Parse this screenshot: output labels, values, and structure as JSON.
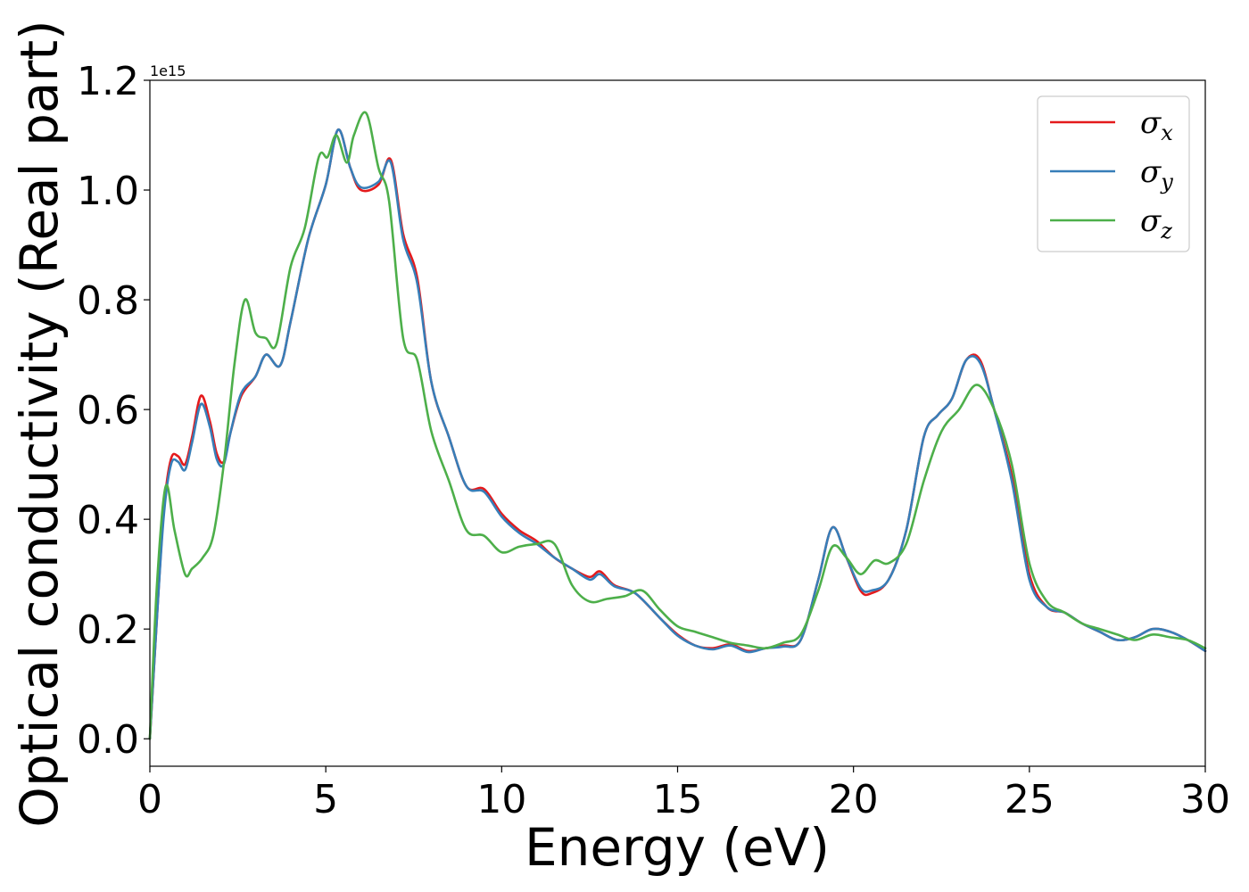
{
  "chart_data": {
    "type": "line",
    "title": "",
    "xlabel": "Energy (eV)",
    "ylabel": "Optical conductivity (Real part)",
    "y_offset_label": "1e15",
    "xlim": [
      0,
      30
    ],
    "ylim": [
      -0.05,
      1.2
    ],
    "xticks": [
      0,
      5,
      10,
      15,
      20,
      25,
      30
    ],
    "xtick_labels": [
      "0",
      "5",
      "10",
      "15",
      "20",
      "25",
      "30"
    ],
    "yticks": [
      0.0,
      0.2,
      0.4,
      0.6,
      0.8,
      1.0,
      1.2
    ],
    "ytick_labels": [
      "0.0",
      "0.2",
      "0.4",
      "0.6",
      "0.8",
      "1.0",
      "1.2"
    ],
    "grid": false,
    "legend_position": "top-right",
    "series": [
      {
        "name": "σ",
        "subscript": "x",
        "color": "#e41a1c",
        "x": [
          0,
          0.2,
          0.4,
          0.6,
          0.8,
          1.0,
          1.2,
          1.45,
          1.7,
          1.9,
          2.1,
          2.3,
          2.6,
          3.0,
          3.3,
          3.7,
          4.0,
          4.5,
          5.0,
          5.35,
          5.7,
          6.0,
          6.5,
          6.85,
          7.2,
          7.6,
          8.0,
          8.5,
          9.0,
          9.5,
          10.0,
          10.5,
          11.0,
          11.5,
          12.0,
          12.5,
          12.8,
          13.2,
          13.8,
          14.5,
          15.0,
          15.5,
          16.0,
          16.5,
          17.0,
          17.5,
          18.0,
          18.5,
          19.0,
          19.4,
          19.8,
          20.2,
          20.5,
          21.0,
          21.5,
          22.0,
          22.4,
          22.8,
          23.2,
          23.6,
          24.0,
          24.5,
          25.0,
          25.5,
          26.0,
          26.5,
          27.0,
          27.5,
          28.0,
          28.5,
          29.0,
          29.5,
          30.0
        ],
        "y": [
          0.0,
          0.22,
          0.42,
          0.51,
          0.515,
          0.5,
          0.55,
          0.625,
          0.58,
          0.52,
          0.505,
          0.56,
          0.625,
          0.66,
          0.7,
          0.68,
          0.76,
          0.91,
          1.01,
          1.11,
          1.04,
          1.0,
          1.01,
          1.055,
          0.92,
          0.84,
          0.65,
          0.55,
          0.46,
          0.455,
          0.41,
          0.38,
          0.36,
          0.33,
          0.31,
          0.295,
          0.305,
          0.28,
          0.265,
          0.22,
          0.19,
          0.17,
          0.165,
          0.172,
          0.16,
          0.165,
          0.17,
          0.18,
          0.29,
          0.385,
          0.33,
          0.27,
          0.265,
          0.29,
          0.38,
          0.55,
          0.59,
          0.62,
          0.69,
          0.69,
          0.6,
          0.48,
          0.3,
          0.24,
          0.23,
          0.21,
          0.195,
          0.18,
          0.185,
          0.2,
          0.195,
          0.18,
          0.16
        ]
      },
      {
        "name": "σ",
        "subscript": "y",
        "color": "#377eb8",
        "x": [
          0,
          0.2,
          0.4,
          0.6,
          0.8,
          1.0,
          1.2,
          1.45,
          1.7,
          1.9,
          2.1,
          2.3,
          2.6,
          3.0,
          3.3,
          3.7,
          4.0,
          4.5,
          5.0,
          5.35,
          5.7,
          6.0,
          6.5,
          6.85,
          7.2,
          7.6,
          8.0,
          8.5,
          9.0,
          9.5,
          10.0,
          10.5,
          11.0,
          11.5,
          12.0,
          12.5,
          12.8,
          13.2,
          13.8,
          14.5,
          15.0,
          15.5,
          16.0,
          16.5,
          17.0,
          17.5,
          18.0,
          18.5,
          19.0,
          19.4,
          19.8,
          20.2,
          20.5,
          21.0,
          21.5,
          22.0,
          22.4,
          22.8,
          23.2,
          23.6,
          24.0,
          24.5,
          25.0,
          25.5,
          26.0,
          26.5,
          27.0,
          27.5,
          28.0,
          28.5,
          29.0,
          29.5,
          30.0
        ],
        "y": [
          0.0,
          0.22,
          0.41,
          0.5,
          0.505,
          0.49,
          0.54,
          0.61,
          0.57,
          0.51,
          0.5,
          0.56,
          0.63,
          0.66,
          0.7,
          0.68,
          0.76,
          0.91,
          1.01,
          1.11,
          1.04,
          1.005,
          1.015,
          1.05,
          0.91,
          0.83,
          0.65,
          0.55,
          0.46,
          0.45,
          0.405,
          0.375,
          0.355,
          0.33,
          0.31,
          0.29,
          0.3,
          0.278,
          0.265,
          0.22,
          0.188,
          0.17,
          0.163,
          0.17,
          0.158,
          0.165,
          0.168,
          0.18,
          0.29,
          0.385,
          0.33,
          0.275,
          0.27,
          0.29,
          0.38,
          0.55,
          0.59,
          0.62,
          0.69,
          0.685,
          0.6,
          0.47,
          0.29,
          0.24,
          0.23,
          0.21,
          0.195,
          0.18,
          0.185,
          0.2,
          0.195,
          0.18,
          0.16
        ]
      },
      {
        "name": "σ",
        "subscript": "z",
        "color": "#4daf4a",
        "x": [
          0,
          0.2,
          0.45,
          0.7,
          1.0,
          1.2,
          1.5,
          1.8,
          2.1,
          2.4,
          2.7,
          3.0,
          3.3,
          3.6,
          4.0,
          4.4,
          4.8,
          5.05,
          5.3,
          5.6,
          5.8,
          6.15,
          6.5,
          6.8,
          7.2,
          7.6,
          8.0,
          8.5,
          9.0,
          9.5,
          10.0,
          10.5,
          11.0,
          11.5,
          12.0,
          12.5,
          13.0,
          13.5,
          14.0,
          14.5,
          15.0,
          15.5,
          16.0,
          16.5,
          17.0,
          17.5,
          18.0,
          18.5,
          19.0,
          19.4,
          19.8,
          20.2,
          20.6,
          21.0,
          21.5,
          22.0,
          22.5,
          23.0,
          23.5,
          24.0,
          24.5,
          25.0,
          25.5,
          26.0,
          26.5,
          27.0,
          27.5,
          28.0,
          28.5,
          29.0,
          29.5,
          30.0
        ],
        "y": [
          0.0,
          0.28,
          0.46,
          0.38,
          0.3,
          0.31,
          0.33,
          0.37,
          0.5,
          0.68,
          0.8,
          0.74,
          0.73,
          0.72,
          0.86,
          0.93,
          1.06,
          1.06,
          1.1,
          1.05,
          1.1,
          1.14,
          1.04,
          0.98,
          0.73,
          0.69,
          0.56,
          0.47,
          0.38,
          0.37,
          0.34,
          0.35,
          0.355,
          0.355,
          0.28,
          0.25,
          0.255,
          0.26,
          0.27,
          0.235,
          0.205,
          0.195,
          0.185,
          0.175,
          0.17,
          0.165,
          0.175,
          0.19,
          0.27,
          0.35,
          0.33,
          0.3,
          0.325,
          0.32,
          0.355,
          0.47,
          0.56,
          0.6,
          0.645,
          0.6,
          0.5,
          0.32,
          0.25,
          0.23,
          0.21,
          0.2,
          0.19,
          0.18,
          0.19,
          0.185,
          0.18,
          0.165
        ]
      }
    ]
  }
}
